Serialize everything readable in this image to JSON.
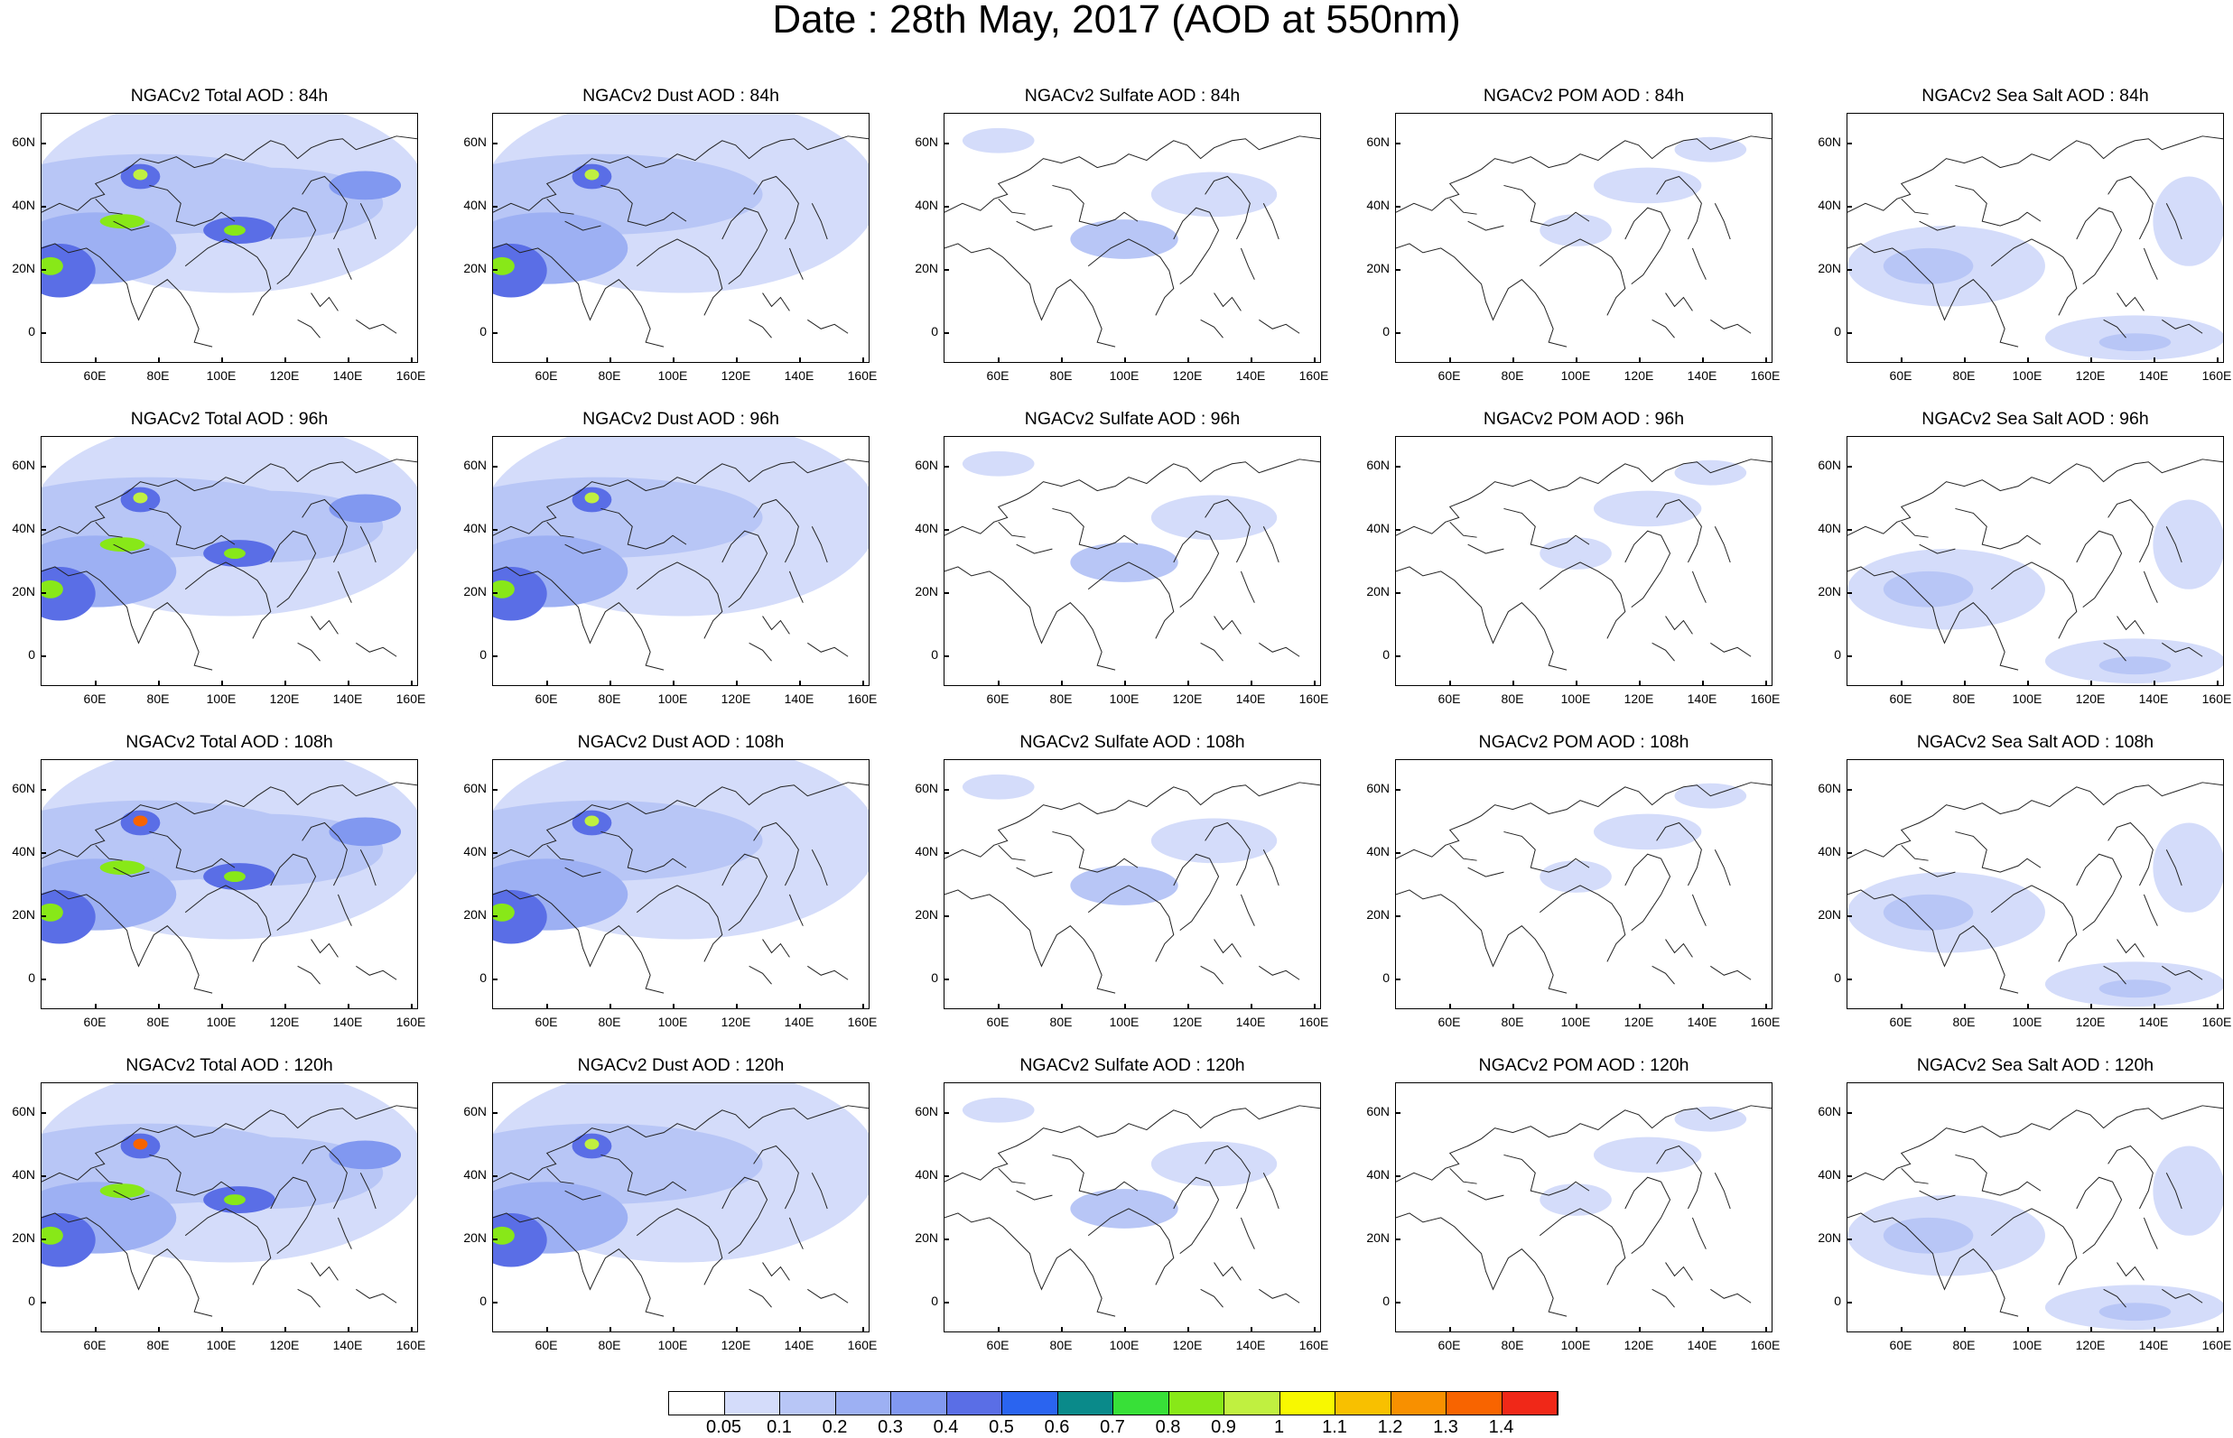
{
  "title": "Date : 28th May, 2017 (AOD at 550nm)",
  "rows": [
    [
      "NGACv2 Total AOD : 84h",
      "NGACv2 Dust AOD : 84h",
      "NGACv2 Sulfate AOD : 84h",
      "NGACv2 POM AOD : 84h",
      "NGACv2 Sea Salt AOD : 84h"
    ],
    [
      "NGACv2 Total AOD : 96h",
      "NGACv2 Dust AOD : 96h",
      "NGACv2 Sulfate AOD : 96h",
      "NGACv2 POM AOD : 96h",
      "NGACv2 Sea Salt AOD : 96h"
    ],
    [
      "NGACv2 Total AOD : 108h",
      "NGACv2 Dust AOD : 108h",
      "NGACv2 Sulfate AOD : 108h",
      "NGACv2 POM AOD : 108h",
      "NGACv2 Sea Salt AOD : 108h"
    ],
    [
      "NGACv2 Total AOD : 120h",
      "NGACv2 Dust AOD : 120h",
      "NGACv2 Sulfate AOD : 120h",
      "NGACv2 POM AOD : 120h",
      "NGACv2 Sea Salt  AOD : 120h"
    ]
  ],
  "x_ticks": [
    "60E",
    "80E",
    "100E",
    "120E",
    "140E",
    "160E"
  ],
  "y_ticks": [
    "60N",
    "40N",
    "20N",
    "0"
  ],
  "colorbar": {
    "labels": [
      "0.05",
      "0.1",
      "0.2",
      "0.3",
      "0.4",
      "0.5",
      "0.6",
      "0.7",
      "0.8",
      "0.9",
      "1",
      "1.1",
      "1.2",
      "1.3",
      "1.4"
    ],
    "colors": [
      "#ffffff",
      "#d4dcfa",
      "#b8c6f6",
      "#9db0f3",
      "#8198f0",
      "#5a6ee6",
      "#2a64f0",
      "#0a8a8a",
      "#38e038",
      "#88e818",
      "#c0f040",
      "#f8f800",
      "#f8c000",
      "#f89000",
      "#f86400",
      "#f02818"
    ]
  }
}
